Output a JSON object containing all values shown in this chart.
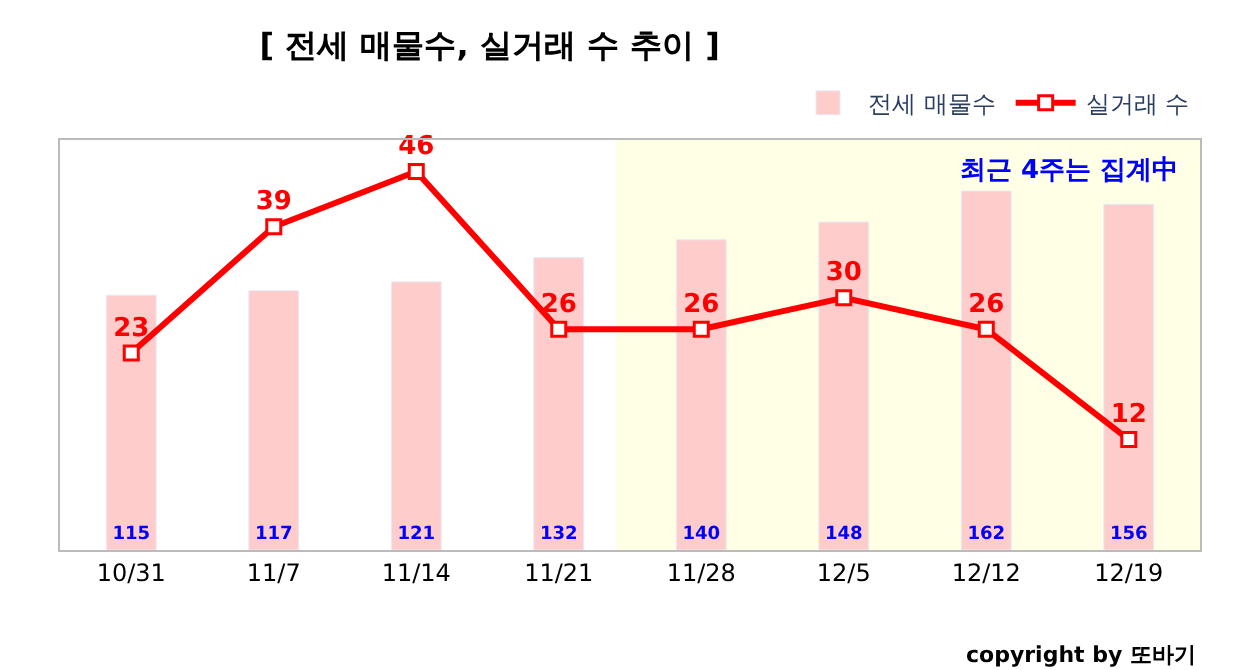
{
  "chart_data": {
    "type": "bar",
    "title": "[ 전세 매물수, 실거래 수 추이 ]",
    "categories": [
      "10/31",
      "11/7",
      "11/14",
      "11/21",
      "11/28",
      "12/5",
      "12/12",
      "12/19"
    ],
    "series": [
      {
        "name": "전세 매물수",
        "color": "#ffcccc",
        "values": [
          115,
          117,
          121,
          132,
          140,
          148,
          162,
          156
        ]
      },
      {
        "name": "실거래 수",
        "type": "line",
        "axis": "y2",
        "color": "#ff0000",
        "marker": "square",
        "values": [
          23,
          39,
          46,
          26,
          26,
          30,
          26,
          12
        ]
      }
    ],
    "ylim": [
      0,
      185
    ],
    "y2lim": [
      -2,
      50
    ],
    "tick_labels": "x",
    "data_labels": true,
    "legend": "top right",
    "grid": false,
    "bands": [
      {
        "axis": "x",
        "from": "11/28",
        "to": "12/19",
        "color": "#ffffe6"
      }
    ],
    "annotations": [
      "최근 4주는 집계中",
      "copyright by 또바기"
    ]
  }
}
